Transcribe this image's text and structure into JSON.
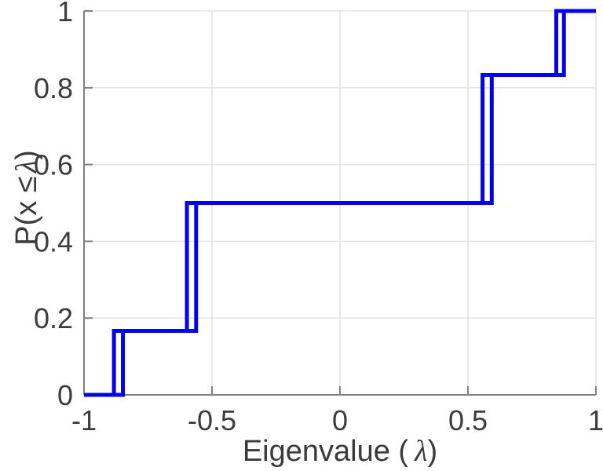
{
  "labels": {
    "xlabel_prefix": "Eigenvalue (",
    "xlabel_lambda": "λ",
    "xlabel_suffix": ")",
    "ylabel_prefix": "P(x ≤",
    "ylabel_lambda": "λ",
    "ylabel_suffix": ")"
  },
  "chart_data": {
    "type": "line",
    "subtype": "ecdf-stairs",
    "title": "",
    "xlabel": "Eigenvalue ( λ)",
    "ylabel": "P(x ≤ λ)",
    "xlim": [
      -1,
      1
    ],
    "ylim": [
      0,
      1
    ],
    "x_ticks": [
      -1,
      -0.5,
      0,
      0.5,
      1
    ],
    "x_tick_labels": [
      "-1",
      "-0.5",
      "0",
      "0.5",
      "1"
    ],
    "y_ticks": [
      0,
      0.2,
      0.4,
      0.6,
      0.8,
      1
    ],
    "y_tick_labels": [
      "0",
      "0.2",
      "0.4",
      "0.6",
      "0.8",
      "1"
    ],
    "grid": true,
    "legend": false,
    "line_color": "#0202f0",
    "line_width": 5,
    "axis_color": "#7f7f7f",
    "grid_color": "#e4e4e4",
    "tick_label_color": "#3c3c3c",
    "series": [
      {
        "name": "ecdf-curve-1",
        "start_level": 0,
        "jump_x": [
          -0.883,
          -0.598,
          0.557,
          0.845
        ],
        "levels": [
          0.1667,
          0.5,
          0.8333,
          1.0
        ]
      },
      {
        "name": "ecdf-curve-2",
        "start_level": 0,
        "jump_x": [
          -0.848,
          -0.562,
          0.593,
          0.875
        ],
        "levels": [
          0.1667,
          0.5,
          0.8333,
          1.0
        ]
      }
    ]
  }
}
